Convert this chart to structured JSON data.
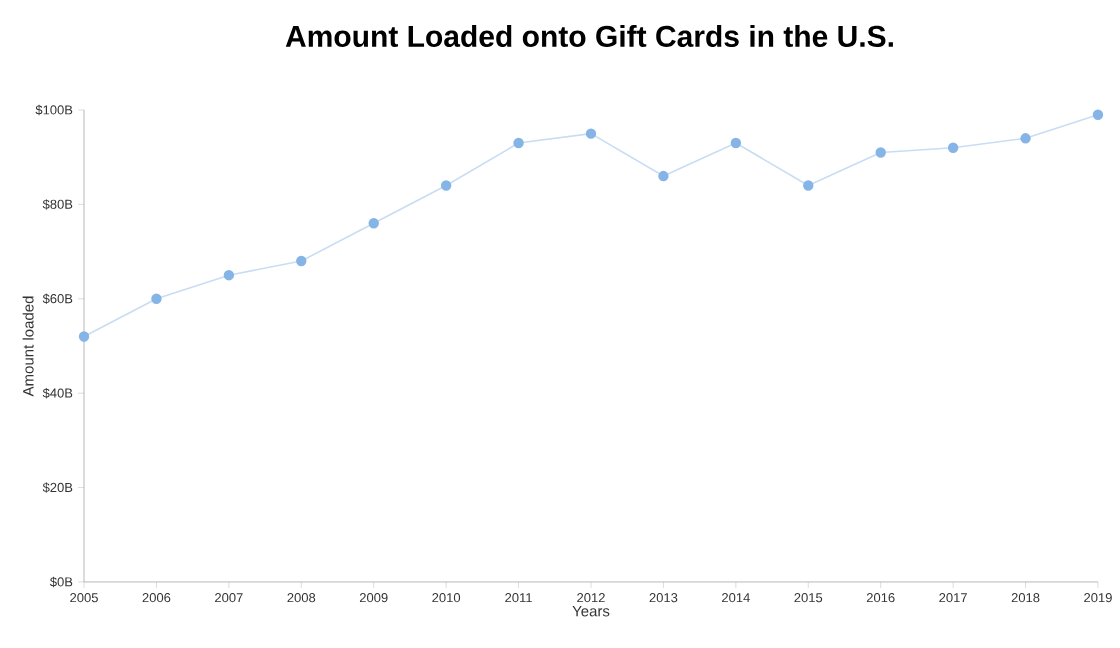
{
  "chart_data": {
    "type": "line",
    "title": "Amount Loaded onto Gift Cards in the U.S.",
    "xlabel": "Years",
    "ylabel": "Amount loaded",
    "x": [
      2005,
      2006,
      2007,
      2008,
      2009,
      2010,
      2011,
      2012,
      2013,
      2014,
      2015,
      2016,
      2017,
      2018,
      2019
    ],
    "series": [
      {
        "color": "#85b4e6",
        "values": [
          52,
          60,
          65,
          68,
          76,
          84,
          93,
          95,
          86,
          93,
          84,
          91,
          92,
          94,
          99
        ]
      }
    ],
    "xlim": [
      2005,
      2019
    ],
    "xticks": [
      2005,
      2006,
      2007,
      2008,
      2009,
      2010,
      2011,
      2012,
      2013,
      2014,
      2015,
      2016,
      2017,
      2018,
      2019
    ],
    "ylim": [
      0,
      100
    ],
    "yticks": [
      {
        "value": 0,
        "label": "$0B"
      },
      {
        "value": 20,
        "label": "$20B"
      },
      {
        "value": 40,
        "label": "$40B"
      },
      {
        "value": 60,
        "label": "$60B"
      },
      {
        "value": 80,
        "label": "$80B"
      },
      {
        "value": 100,
        "label": "$100B"
      }
    ],
    "grid": false,
    "marker": "circle",
    "line_style": "solid"
  }
}
